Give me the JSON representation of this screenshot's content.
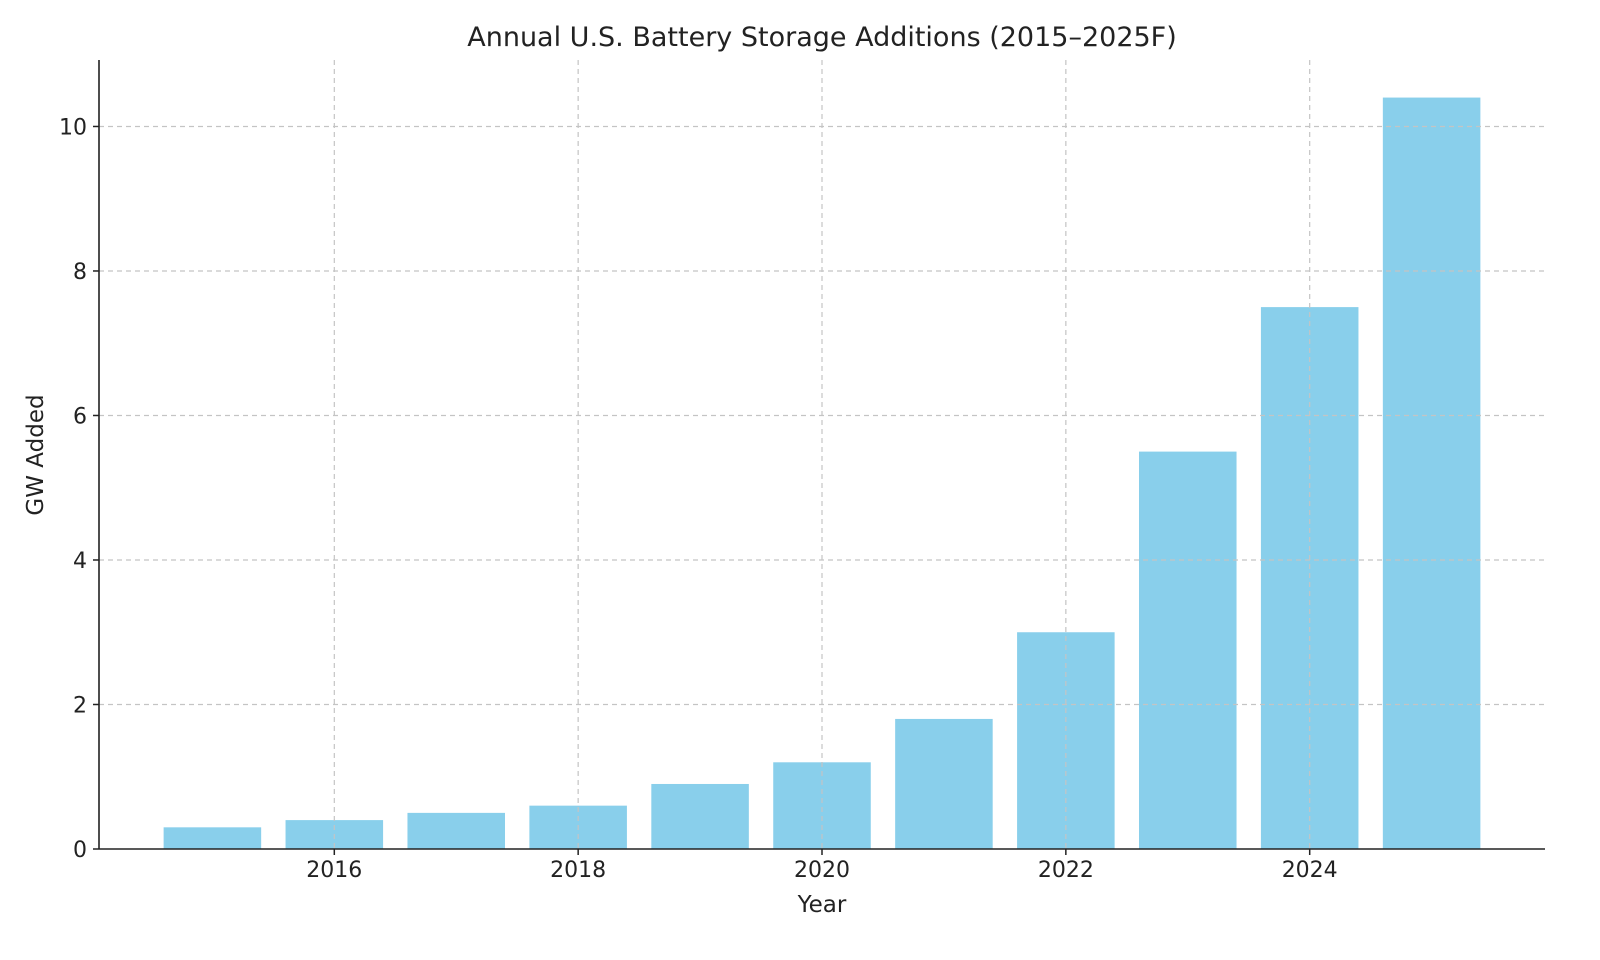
{
  "chart_data": {
    "type": "bar",
    "title": "Annual U.S. Battery Storage Additions (2015–2025F)",
    "xlabel": "Year",
    "ylabel": "GW Added",
    "categories": [
      2015,
      2016,
      2017,
      2018,
      2019,
      2020,
      2021,
      2022,
      2023,
      2024,
      2025
    ],
    "values": [
      0.3,
      0.4,
      0.5,
      0.6,
      0.9,
      1.2,
      1.8,
      3.0,
      5.5,
      7.5,
      10.4
    ],
    "xticks": [
      "2016",
      "2018",
      "2020",
      "2022",
      "2024"
    ],
    "yticks": [
      "0",
      "2",
      "4",
      "6",
      "8",
      "10"
    ],
    "xlim": [
      2014.07,
      2025.93
    ],
    "ylim": [
      0,
      10.92
    ],
    "grid": true,
    "bar_color": "#87CEEB"
  }
}
